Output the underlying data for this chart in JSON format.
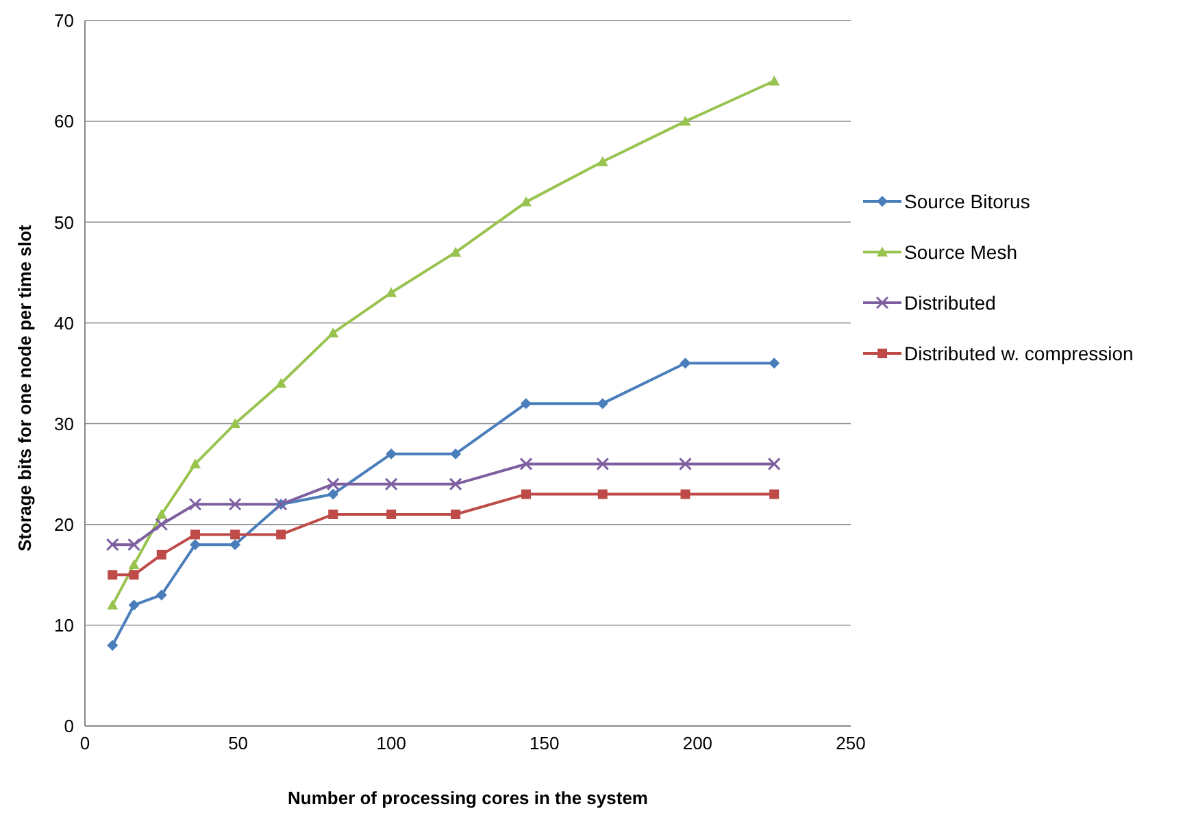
{
  "chart_data": {
    "type": "line",
    "xlabel": "Number of processing cores in the system",
    "ylabel": "Storage bits for one node per time slot",
    "x": [
      9,
      16,
      25,
      36,
      49,
      64,
      81,
      100,
      121,
      144,
      169,
      196,
      225
    ],
    "xlim": [
      0,
      250
    ],
    "xticks": [
      0,
      50,
      100,
      150,
      200,
      250
    ],
    "ylim": [
      0,
      70
    ],
    "yticks": [
      0,
      10,
      20,
      30,
      40,
      50,
      60,
      70
    ],
    "grid": "y",
    "legend": "right",
    "series": [
      {
        "name": "Source Bitorus",
        "color": "#4a7ebb",
        "marker": "diamond",
        "values": [
          8,
          12,
          13,
          18,
          18,
          22,
          23,
          27,
          27,
          32,
          32,
          36,
          36
        ]
      },
      {
        "name": "Source Mesh",
        "color": "#98c34f",
        "marker": "triangle",
        "values": [
          12,
          16,
          21,
          26,
          30,
          34,
          39,
          43,
          47,
          52,
          56,
          60,
          64
        ]
      },
      {
        "name": "Distributed",
        "color": "#7d5fa0",
        "marker": "cross",
        "values": [
          18,
          18,
          20,
          22,
          22,
          22,
          24,
          24,
          24,
          26,
          26,
          26,
          26
        ]
      },
      {
        "name": "Distributed w. compression",
        "color": "#be4b48",
        "marker": "square",
        "values": [
          15,
          15,
          17,
          19,
          19,
          19,
          21,
          21,
          21,
          23,
          23,
          23,
          23
        ]
      }
    ]
  }
}
